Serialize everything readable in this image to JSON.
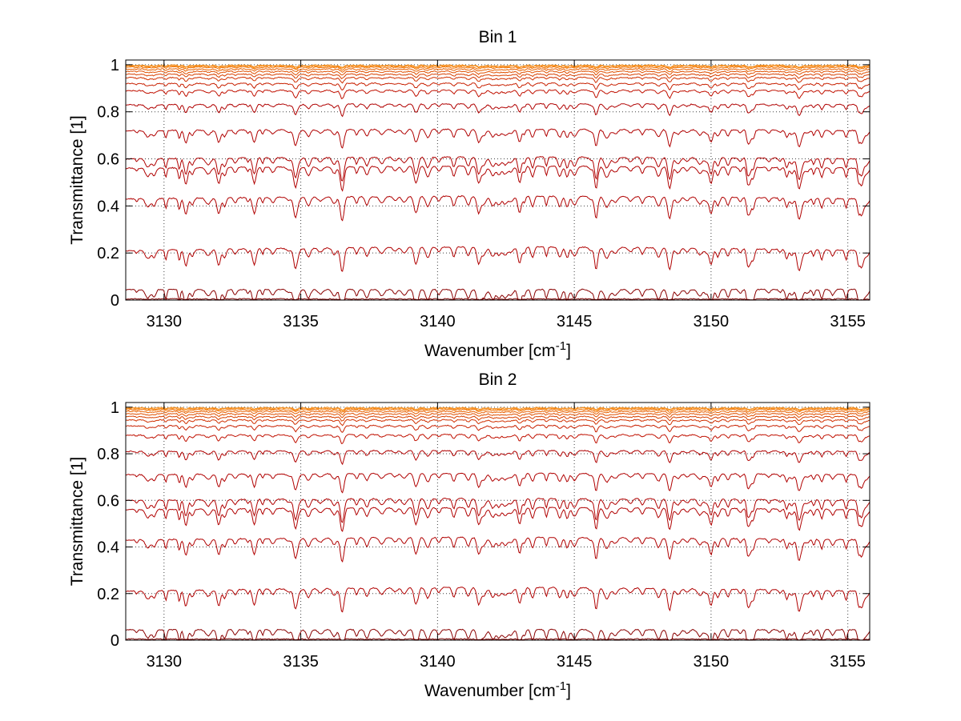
{
  "chart_data": [
    {
      "type": "line",
      "title": "Bin 1",
      "xlabel": "Wavenumber [cm",
      "xlabel_sup": "-1",
      "xlabel_end": "]",
      "ylabel": "Transmittance [1]",
      "xlim": [
        3128.6,
        3155.8
      ],
      "ylim": [
        0,
        1.02
      ],
      "xticks": [
        3130,
        3135,
        3140,
        3145,
        3150,
        3155
      ],
      "xtick_labels": [
        "3130",
        "3135",
        "3140",
        "3145",
        "3150",
        "3155"
      ],
      "yticks": [
        0,
        0.2,
        0.4,
        0.6,
        0.8,
        1
      ],
      "ytick_labels": [
        "0",
        "0.2",
        "0.4",
        "0.6",
        "0.8",
        "1"
      ],
      "grid": true,
      "series_baseline": [
        0.005,
        0.045,
        0.21,
        0.43,
        0.56,
        0.6,
        0.72,
        0.83,
        0.89,
        0.92,
        0.945,
        0.96,
        0.972,
        0.982,
        0.99,
        0.995,
        0.998
      ],
      "series_colors": [
        "#7a0000",
        "#8a0000",
        "#b00000",
        "#b00000",
        "#b00000",
        "#b00000",
        "#b00000",
        "#b00000",
        "#c01000",
        "#c82000",
        "#d03000",
        "#d84000",
        "#e05000",
        "#e86000",
        "#f07000",
        "#f58000",
        "#f59020"
      ]
    },
    {
      "type": "line",
      "title": "Bin 2",
      "xlabel": "Wavenumber [cm",
      "xlabel_sup": "-1",
      "xlabel_end": "]",
      "ylabel": "Transmittance [1]",
      "xlim": [
        3128.6,
        3155.8
      ],
      "ylim": [
        0,
        1.02
      ],
      "xticks": [
        3130,
        3135,
        3140,
        3145,
        3150,
        3155
      ],
      "xtick_labels": [
        "3130",
        "3135",
        "3140",
        "3145",
        "3150",
        "3155"
      ],
      "yticks": [
        0,
        0.2,
        0.4,
        0.6,
        0.8,
        1
      ],
      "ytick_labels": [
        "0",
        "0.2",
        "0.4",
        "0.6",
        "0.8",
        "1"
      ],
      "grid": true,
      "series_baseline": [
        0.005,
        0.045,
        0.21,
        0.43,
        0.56,
        0.6,
        0.71,
        0.81,
        0.88,
        0.92,
        0.945,
        0.96,
        0.972,
        0.982,
        0.99,
        0.995,
        0.998
      ],
      "series_colors": [
        "#7a0000",
        "#8a0000",
        "#b00000",
        "#b00000",
        "#b00000",
        "#b00000",
        "#b00000",
        "#b00000",
        "#c01000",
        "#c82000",
        "#d03000",
        "#d84000",
        "#e05000",
        "#e86000",
        "#f07000",
        "#f58000",
        "#f59020"
      ]
    }
  ]
}
